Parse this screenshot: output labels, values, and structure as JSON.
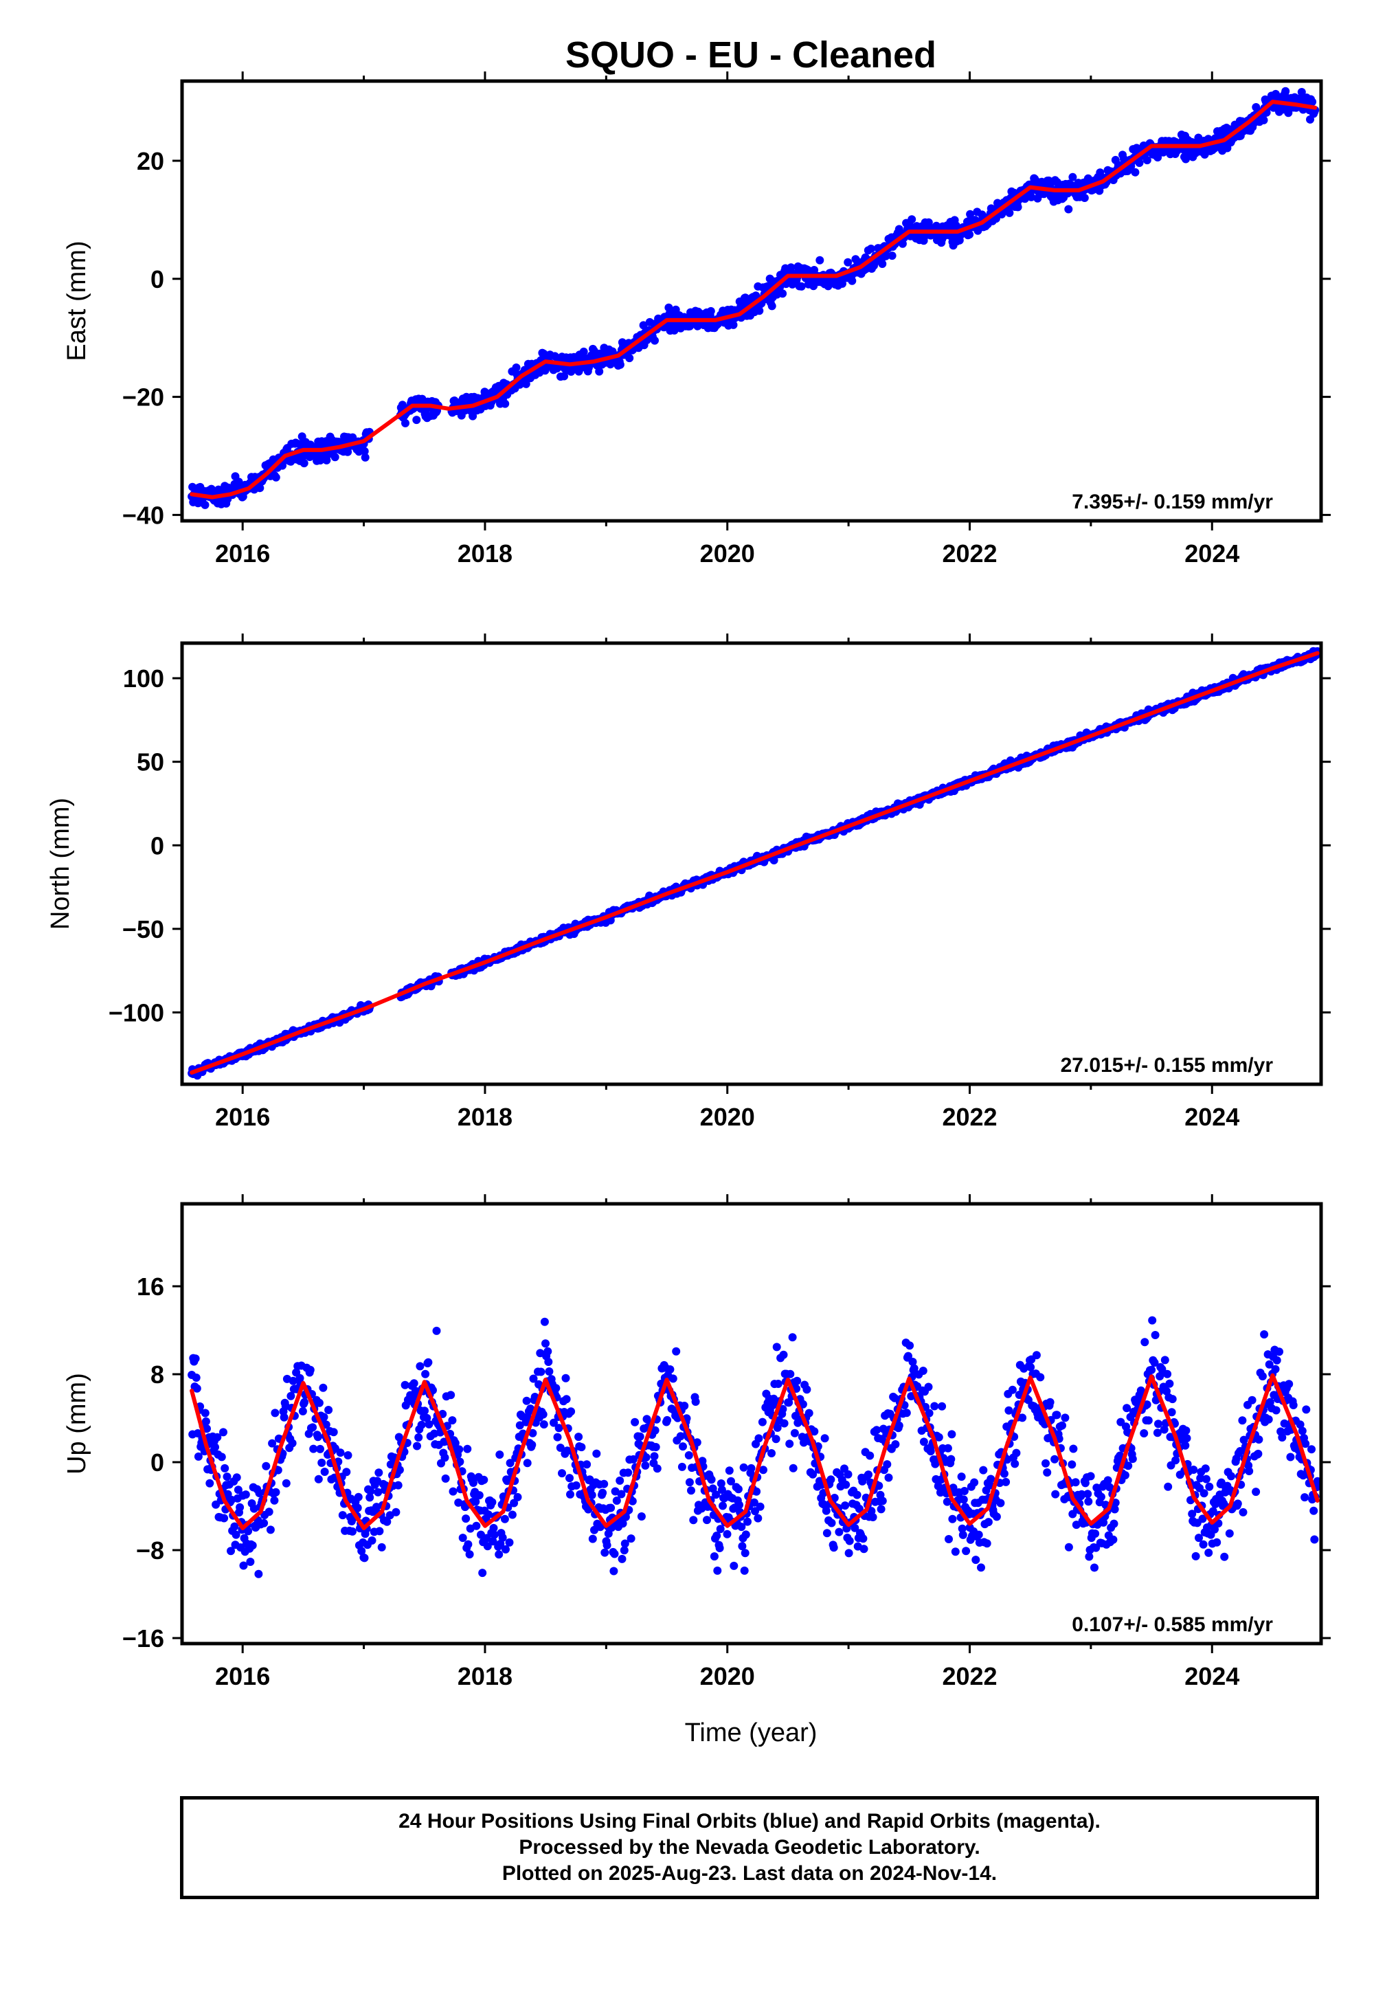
{
  "title": "SQUO  - EU - Cleaned",
  "colors": {
    "points": "#0000ff",
    "fit": "#ff0000",
    "frame": "#000000"
  },
  "footer": {
    "line1": "24 Hour Positions Using Final Orbits (blue) and Rapid Orbits (magenta).",
    "line2": "Processed by the Nevada Geodetic Laboratory.",
    "line3": "Plotted on 2025-Aug-23. Last data on 2024-Nov-14."
  },
  "chart_data": [
    {
      "type": "scatter",
      "ylabel": "East (mm)",
      "xlabel": "",
      "xlim": [
        2015.5,
        2024.9
      ],
      "ylim": [
        -41,
        33.5
      ],
      "xticks": [
        2016,
        2018,
        2020,
        2022,
        2024
      ],
      "yticks": [
        -40,
        -20,
        0,
        20
      ],
      "ytick_labels": [
        "−40",
        "−20",
        "0",
        "20"
      ],
      "rate_text": "7.395+/- 0.159 mm/yr",
      "series": [
        {
          "role": "fit",
          "x": [
            2015.58,
            2015.75,
            2015.9,
            2016.05,
            2016.2,
            2016.35,
            2016.5,
            2016.65,
            2016.8,
            2017.0,
            2017.2,
            2017.4,
            2017.55,
            2017.7,
            2017.9,
            2018.1,
            2018.3,
            2018.5,
            2018.7,
            2018.9,
            2019.1,
            2019.3,
            2019.5,
            2019.7,
            2019.9,
            2020.1,
            2020.3,
            2020.5,
            2020.7,
            2020.9,
            2021.1,
            2021.3,
            2021.5,
            2021.7,
            2021.9,
            2022.1,
            2022.3,
            2022.5,
            2022.7,
            2022.9,
            2023.1,
            2023.3,
            2023.5,
            2023.7,
            2023.9,
            2024.1,
            2024.3,
            2024.5,
            2024.7,
            2024.85
          ],
          "y": [
            -36.5,
            -37.0,
            -36.5,
            -35.5,
            -33.0,
            -30.0,
            -29.0,
            -29.0,
            -28.5,
            -27.5,
            -24.5,
            -21.5,
            -21.5,
            -22.0,
            -21.5,
            -20.0,
            -16.5,
            -14.0,
            -14.5,
            -14.0,
            -13.0,
            -10.0,
            -7.0,
            -7.0,
            -7.0,
            -6.0,
            -3.0,
            0.5,
            0.5,
            0.5,
            2.0,
            5.0,
            8.0,
            8.0,
            8.0,
            9.5,
            12.5,
            15.5,
            15.0,
            15.0,
            16.5,
            19.5,
            22.5,
            22.5,
            22.5,
            23.5,
            26.5,
            30.0,
            29.5,
            29.0
          ]
        }
      ]
    },
    {
      "type": "scatter",
      "ylabel": "North (mm)",
      "xlabel": "",
      "xlim": [
        2015.5,
        2024.9
      ],
      "ylim": [
        -143,
        121
      ],
      "xticks": [
        2016,
        2018,
        2020,
        2022,
        2024
      ],
      "yticks": [
        -100,
        -50,
        0,
        50,
        100
      ],
      "ytick_labels": [
        "−100",
        "−50",
        "0",
        "50",
        "100"
      ],
      "rate_text": "27.015+/- 0.155 mm/yr",
      "series": [
        {
          "role": "fit",
          "x": [
            2015.58,
            2016.0,
            2016.5,
            2017.0,
            2017.5,
            2018.0,
            2018.5,
            2019.0,
            2019.5,
            2020.0,
            2020.5,
            2021.0,
            2021.5,
            2022.0,
            2022.5,
            2023.0,
            2023.5,
            2024.0,
            2024.5,
            2024.87
          ],
          "y": [
            -136.0,
            -125.0,
            -111.0,
            -98.0,
            -83.0,
            -70.0,
            -56.0,
            -43.0,
            -29.0,
            -16.0,
            -2.0,
            11.5,
            25.0,
            38.5,
            52.0,
            65.5,
            79.0,
            92.5,
            106.0,
            115.0
          ]
        }
      ]
    },
    {
      "type": "scatter",
      "ylabel": "Up (mm)",
      "xlabel": "Time (year)",
      "xlim": [
        2015.5,
        2024.9
      ],
      "ylim": [
        -16.5,
        23.5
      ],
      "xticks": [
        2016,
        2018,
        2020,
        2022,
        2024
      ],
      "yticks": [
        -16,
        -8,
        0,
        8,
        16
      ],
      "ytick_labels": [
        "−16",
        "−8",
        "0",
        "8",
        "16"
      ],
      "rate_text": "0.107+/- 0.585 mm/yr",
      "series": [
        {
          "role": "fit",
          "x": [
            2015.58,
            2015.7,
            2015.85,
            2016.0,
            2016.15,
            2016.3,
            2016.5,
            2016.7,
            2016.85,
            2017.0,
            2017.15,
            2017.3,
            2017.5,
            2017.7,
            2017.85,
            2018.0,
            2018.15,
            2018.3,
            2018.5,
            2018.7,
            2018.85,
            2019.0,
            2019.15,
            2019.3,
            2019.5,
            2019.7,
            2019.85,
            2020.0,
            2020.15,
            2020.3,
            2020.5,
            2020.7,
            2020.85,
            2021.0,
            2021.15,
            2021.3,
            2021.5,
            2021.7,
            2021.85,
            2022.0,
            2022.15,
            2022.3,
            2022.5,
            2022.7,
            2022.85,
            2023.0,
            2023.15,
            2023.3,
            2023.5,
            2023.7,
            2023.85,
            2024.0,
            2024.15,
            2024.3,
            2024.5,
            2024.7,
            2024.87
          ],
          "y": [
            6.5,
            1.5,
            -3.5,
            -6.0,
            -4.5,
            1.0,
            7.2,
            2.0,
            -3.5,
            -6.0,
            -4.5,
            1.0,
            7.3,
            2.0,
            -3.5,
            -5.8,
            -4.5,
            1.0,
            7.5,
            2.0,
            -3.5,
            -5.8,
            -4.5,
            1.0,
            7.5,
            2.0,
            -3.5,
            -5.8,
            -4.5,
            1.2,
            7.5,
            2.0,
            -3.5,
            -5.7,
            -4.3,
            1.2,
            7.6,
            2.2,
            -3.3,
            -5.6,
            -4.2,
            1.3,
            7.7,
            2.2,
            -3.3,
            -5.6,
            -4.2,
            1.3,
            7.8,
            2.3,
            -3.2,
            -5.5,
            -4.0,
            1.4,
            7.9,
            2.5,
            -3.5
          ]
        }
      ]
    }
  ]
}
